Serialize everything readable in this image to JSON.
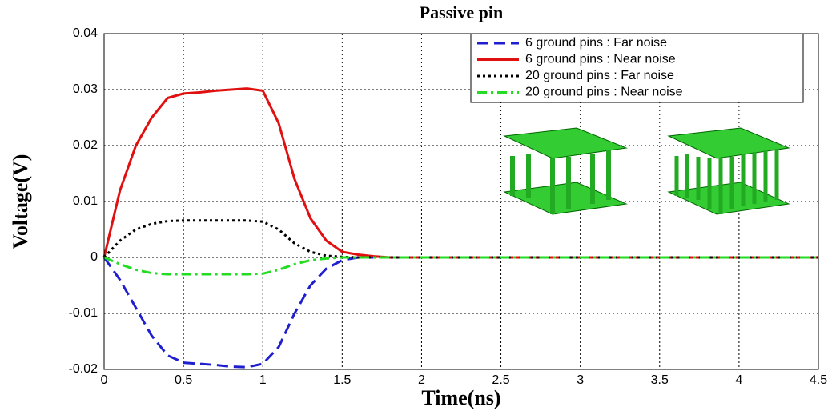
{
  "chart_data": {
    "type": "line",
    "title": "Passive pin",
    "x_label": "Time(ns)",
    "y_label": "Voltage(V)",
    "x": [
      0,
      0.1,
      0.2,
      0.3,
      0.4,
      0.5,
      0.6,
      0.7,
      0.8,
      0.9,
      1.0,
      1.1,
      1.2,
      1.3,
      1.4,
      1.5,
      1.6,
      1.7,
      1.8,
      2.0,
      2.5,
      3,
      3.5,
      4,
      4.5
    ],
    "series": [
      {
        "name": "6 ground pins : Far noise",
        "color": "#1f1fd0",
        "style": "dashed",
        "values": [
          0,
          -0.004,
          -0.009,
          -0.014,
          -0.0175,
          -0.0188,
          -0.019,
          -0.0192,
          -0.0195,
          -0.0196,
          -0.019,
          -0.016,
          -0.01,
          -0.005,
          -0.002,
          -0.0005,
          0,
          0,
          0,
          0,
          0,
          0,
          0,
          0,
          0
        ]
      },
      {
        "name": "6 ground pins : Near noise",
        "color": "#e01010",
        "style": "solid",
        "values": [
          0,
          0.012,
          0.02,
          0.025,
          0.0285,
          0.0293,
          0.0295,
          0.0298,
          0.03,
          0.0302,
          0.0298,
          0.024,
          0.014,
          0.007,
          0.003,
          0.001,
          0.0005,
          0.0002,
          0,
          0,
          0,
          0,
          0,
          0,
          0
        ]
      },
      {
        "name": "20 ground pins : Far noise",
        "color": "#000000",
        "style": "dotted",
        "values": [
          0,
          0.003,
          0.005,
          0.006,
          0.0065,
          0.0066,
          0.0066,
          0.0066,
          0.0066,
          0.0066,
          0.0064,
          0.005,
          0.0025,
          0.001,
          0.0003,
          0.0001,
          0,
          0,
          0,
          0,
          0,
          0,
          0,
          0,
          0
        ]
      },
      {
        "name": "20 ground pins : Near noise",
        "color": "#22dd22",
        "style": "dashdot",
        "values": [
          0,
          -0.0012,
          -0.0022,
          -0.0028,
          -0.003,
          -0.003,
          -0.003,
          -0.003,
          -0.003,
          -0.003,
          -0.0029,
          -0.0022,
          -0.0012,
          -0.0005,
          -0.0002,
          0,
          0,
          0,
          0,
          0,
          0,
          0,
          0,
          0,
          0
        ]
      }
    ],
    "xlim": [
      0,
      4.5
    ],
    "ylim": [
      -0.02,
      0.04
    ],
    "xticks": [
      0,
      0.5,
      1,
      1.5,
      2,
      2.5,
      3,
      3.5,
      4,
      4.5
    ],
    "yticks": [
      -0.02,
      -0.01,
      0,
      0.01,
      0.02,
      0.03,
      0.04
    ],
    "grid": true,
    "legend": "upper right"
  }
}
